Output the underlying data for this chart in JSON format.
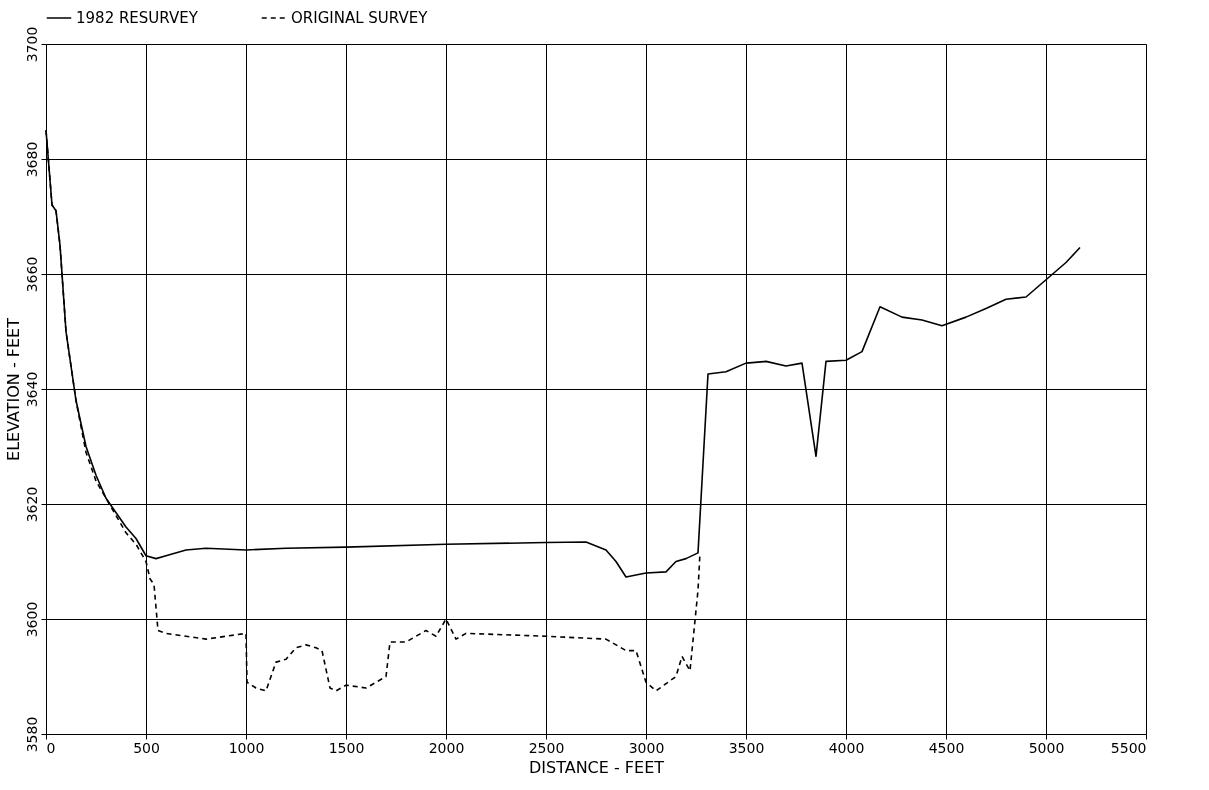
{
  "chart_data": {
    "type": "line",
    "xlabel": "DISTANCE - FEET",
    "ylabel": "ELEVATION - FEET",
    "xlim": [
      0,
      5500
    ],
    "xticks": [
      0,
      500,
      1000,
      1500,
      2000,
      2500,
      3000,
      3500,
      4000,
      4500,
      5000,
      5500
    ],
    "ylim": [
      3580,
      3700
    ],
    "yticks": [
      3580,
      3600,
      3620,
      3640,
      3660,
      3680,
      3700
    ],
    "grid": true,
    "legend": "top",
    "marker": "none",
    "series": [
      {
        "name": "1982 RESURVEY",
        "color": "#000000",
        "line_style": "solid",
        "x": [
          0,
          30,
          50,
          70,
          100,
          150,
          200,
          250,
          300,
          400,
          450,
          500,
          550,
          600,
          700,
          800,
          1000,
          1200,
          1500,
          2000,
          2500,
          2700,
          2800,
          2850,
          2900,
          3000,
          3100,
          3150,
          3200,
          3260,
          3310,
          3400,
          3500,
          3600,
          3700,
          3780,
          3850,
          3900,
          4000,
          4080,
          4170,
          4280,
          4380,
          4480,
          4600,
          4700,
          4800,
          4900,
          5000,
          5100,
          5170
        ],
        "values": [
          3685,
          3672,
          3671,
          3665,
          3650,
          3638,
          3630,
          3625,
          3621,
          3616,
          3614,
          3611,
          3610.5,
          3611,
          3612,
          3612.3,
          3612,
          3612.3,
          3612.5,
          3613,
          3613.3,
          3613.4,
          3612,
          3610,
          3607.3,
          3608,
          3608.2,
          3610,
          3610.5,
          3611.5,
          3642.6,
          3643,
          3644.5,
          3644.8,
          3644,
          3644.5,
          3628.3,
          3644.8,
          3645,
          3646.5,
          3654.3,
          3652.5,
          3652,
          3651,
          3652.5,
          3654,
          3655.6,
          3656,
          3659,
          3662,
          3664.6
        ]
      },
      {
        "name": "ORIGINAL SURVEY",
        "color": "#000000",
        "line_style": "dashed",
        "x": [
          0,
          30,
          50,
          70,
          100,
          150,
          200,
          250,
          300,
          400,
          450,
          500,
          520,
          540,
          560,
          600,
          700,
          800,
          900,
          1000,
          1005,
          1050,
          1100,
          1150,
          1200,
          1250,
          1300,
          1350,
          1380,
          1420,
          1450,
          1500,
          1600,
          1700,
          1720,
          1800,
          1900,
          1950,
          2000,
          2050,
          2100,
          2500,
          2800,
          2900,
          2950,
          3000,
          3050,
          3150,
          3180,
          3220,
          3260,
          3270
        ],
        "values": [
          3685,
          3672,
          3671,
          3665,
          3650,
          3638,
          3629,
          3624,
          3621,
          3615,
          3613,
          3610,
          3607,
          3606,
          3598,
          3597.5,
          3597,
          3596.5,
          3597,
          3597.5,
          3589,
          3588,
          3587.5,
          3592.5,
          3593,
          3595,
          3595.5,
          3595,
          3594.5,
          3588,
          3587.5,
          3588.5,
          3588,
          3590,
          3596,
          3596,
          3598,
          3597,
          3600,
          3596.5,
          3597.5,
          3597,
          3596.5,
          3594.5,
          3594.5,
          3589,
          3587.5,
          3590,
          3593.5,
          3591,
          3605,
          3611.5
        ]
      }
    ]
  }
}
